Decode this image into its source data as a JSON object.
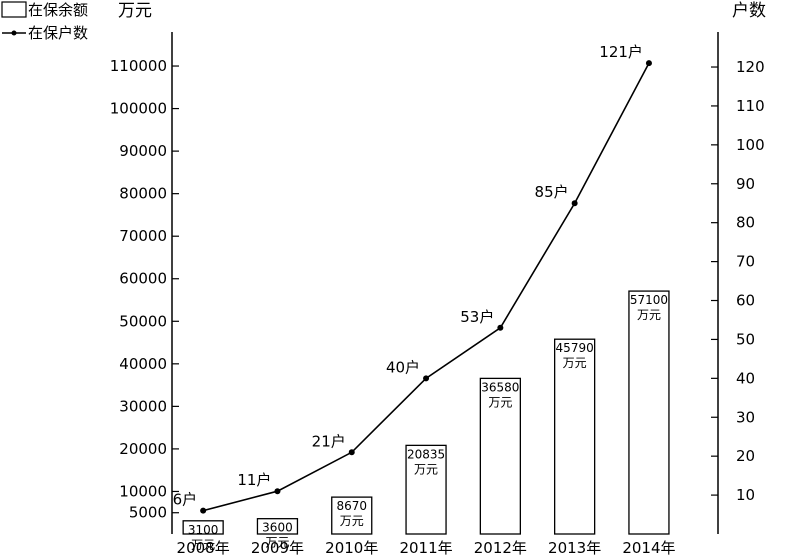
{
  "chart_data": {
    "type": "bar",
    "categories": [
      "2008年",
      "2009年",
      "2010年",
      "2011年",
      "2012年",
      "2013年",
      "2014年"
    ],
    "series": [
      {
        "name": "在保余额",
        "type": "bar",
        "axis": "left",
        "values": [
          3100,
          3600,
          8670,
          20835,
          36580,
          45790,
          57100
        ],
        "labels": [
          "3100",
          "3600",
          "8670",
          "20835",
          "36580",
          "45790",
          "57100"
        ],
        "unit_label": "万元"
      },
      {
        "name": "在保户数",
        "type": "line",
        "axis": "right",
        "values": [
          6,
          11,
          21,
          40,
          53,
          85,
          121
        ],
        "labels": [
          "6户",
          "11户",
          "21户",
          "40户",
          "53户",
          "85户",
          "121户"
        ]
      }
    ],
    "y_left": {
      "label": "万元",
      "ticks": [
        "5000",
        "10000",
        "20000",
        "30000",
        "40000",
        "50000",
        "60000",
        "70000",
        "80000",
        "90000",
        "100000",
        "110000"
      ],
      "tick_values": [
        5000,
        10000,
        20000,
        30000,
        40000,
        50000,
        60000,
        70000,
        80000,
        90000,
        100000,
        110000
      ],
      "ylim": [
        0,
        118000
      ]
    },
    "y_right": {
      "label": "户数",
      "ticks": [
        "10",
        "20",
        "30",
        "40",
        "50",
        "60",
        "70",
        "80",
        "90",
        "100",
        "110",
        "120"
      ],
      "tick_values": [
        10,
        20,
        30,
        40,
        50,
        60,
        70,
        80,
        90,
        100,
        110,
        120
      ],
      "ylim": [
        0,
        129
      ]
    },
    "legend": {
      "placement": "top-left",
      "bar_label": "在保余额",
      "line_label": "在保户数"
    },
    "grid": false
  }
}
